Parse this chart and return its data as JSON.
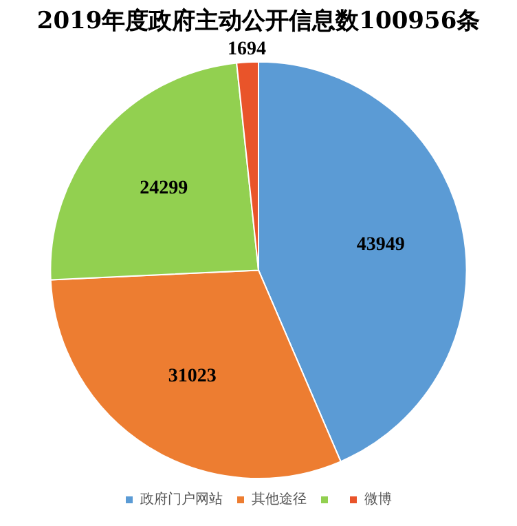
{
  "chart_data": {
    "type": "pie",
    "title": "2019年度政府主动公开信息数100956条",
    "categories": [
      "政府门户网站",
      "其他途径",
      null,
      "微博"
    ],
    "values": [
      43949,
      31023,
      24299,
      1694
    ],
    "colors": [
      "#5b9bd5",
      "#ed7d31",
      "#92d050",
      "#e9542a"
    ],
    "data_labels": true,
    "legend": "bottom"
  }
}
